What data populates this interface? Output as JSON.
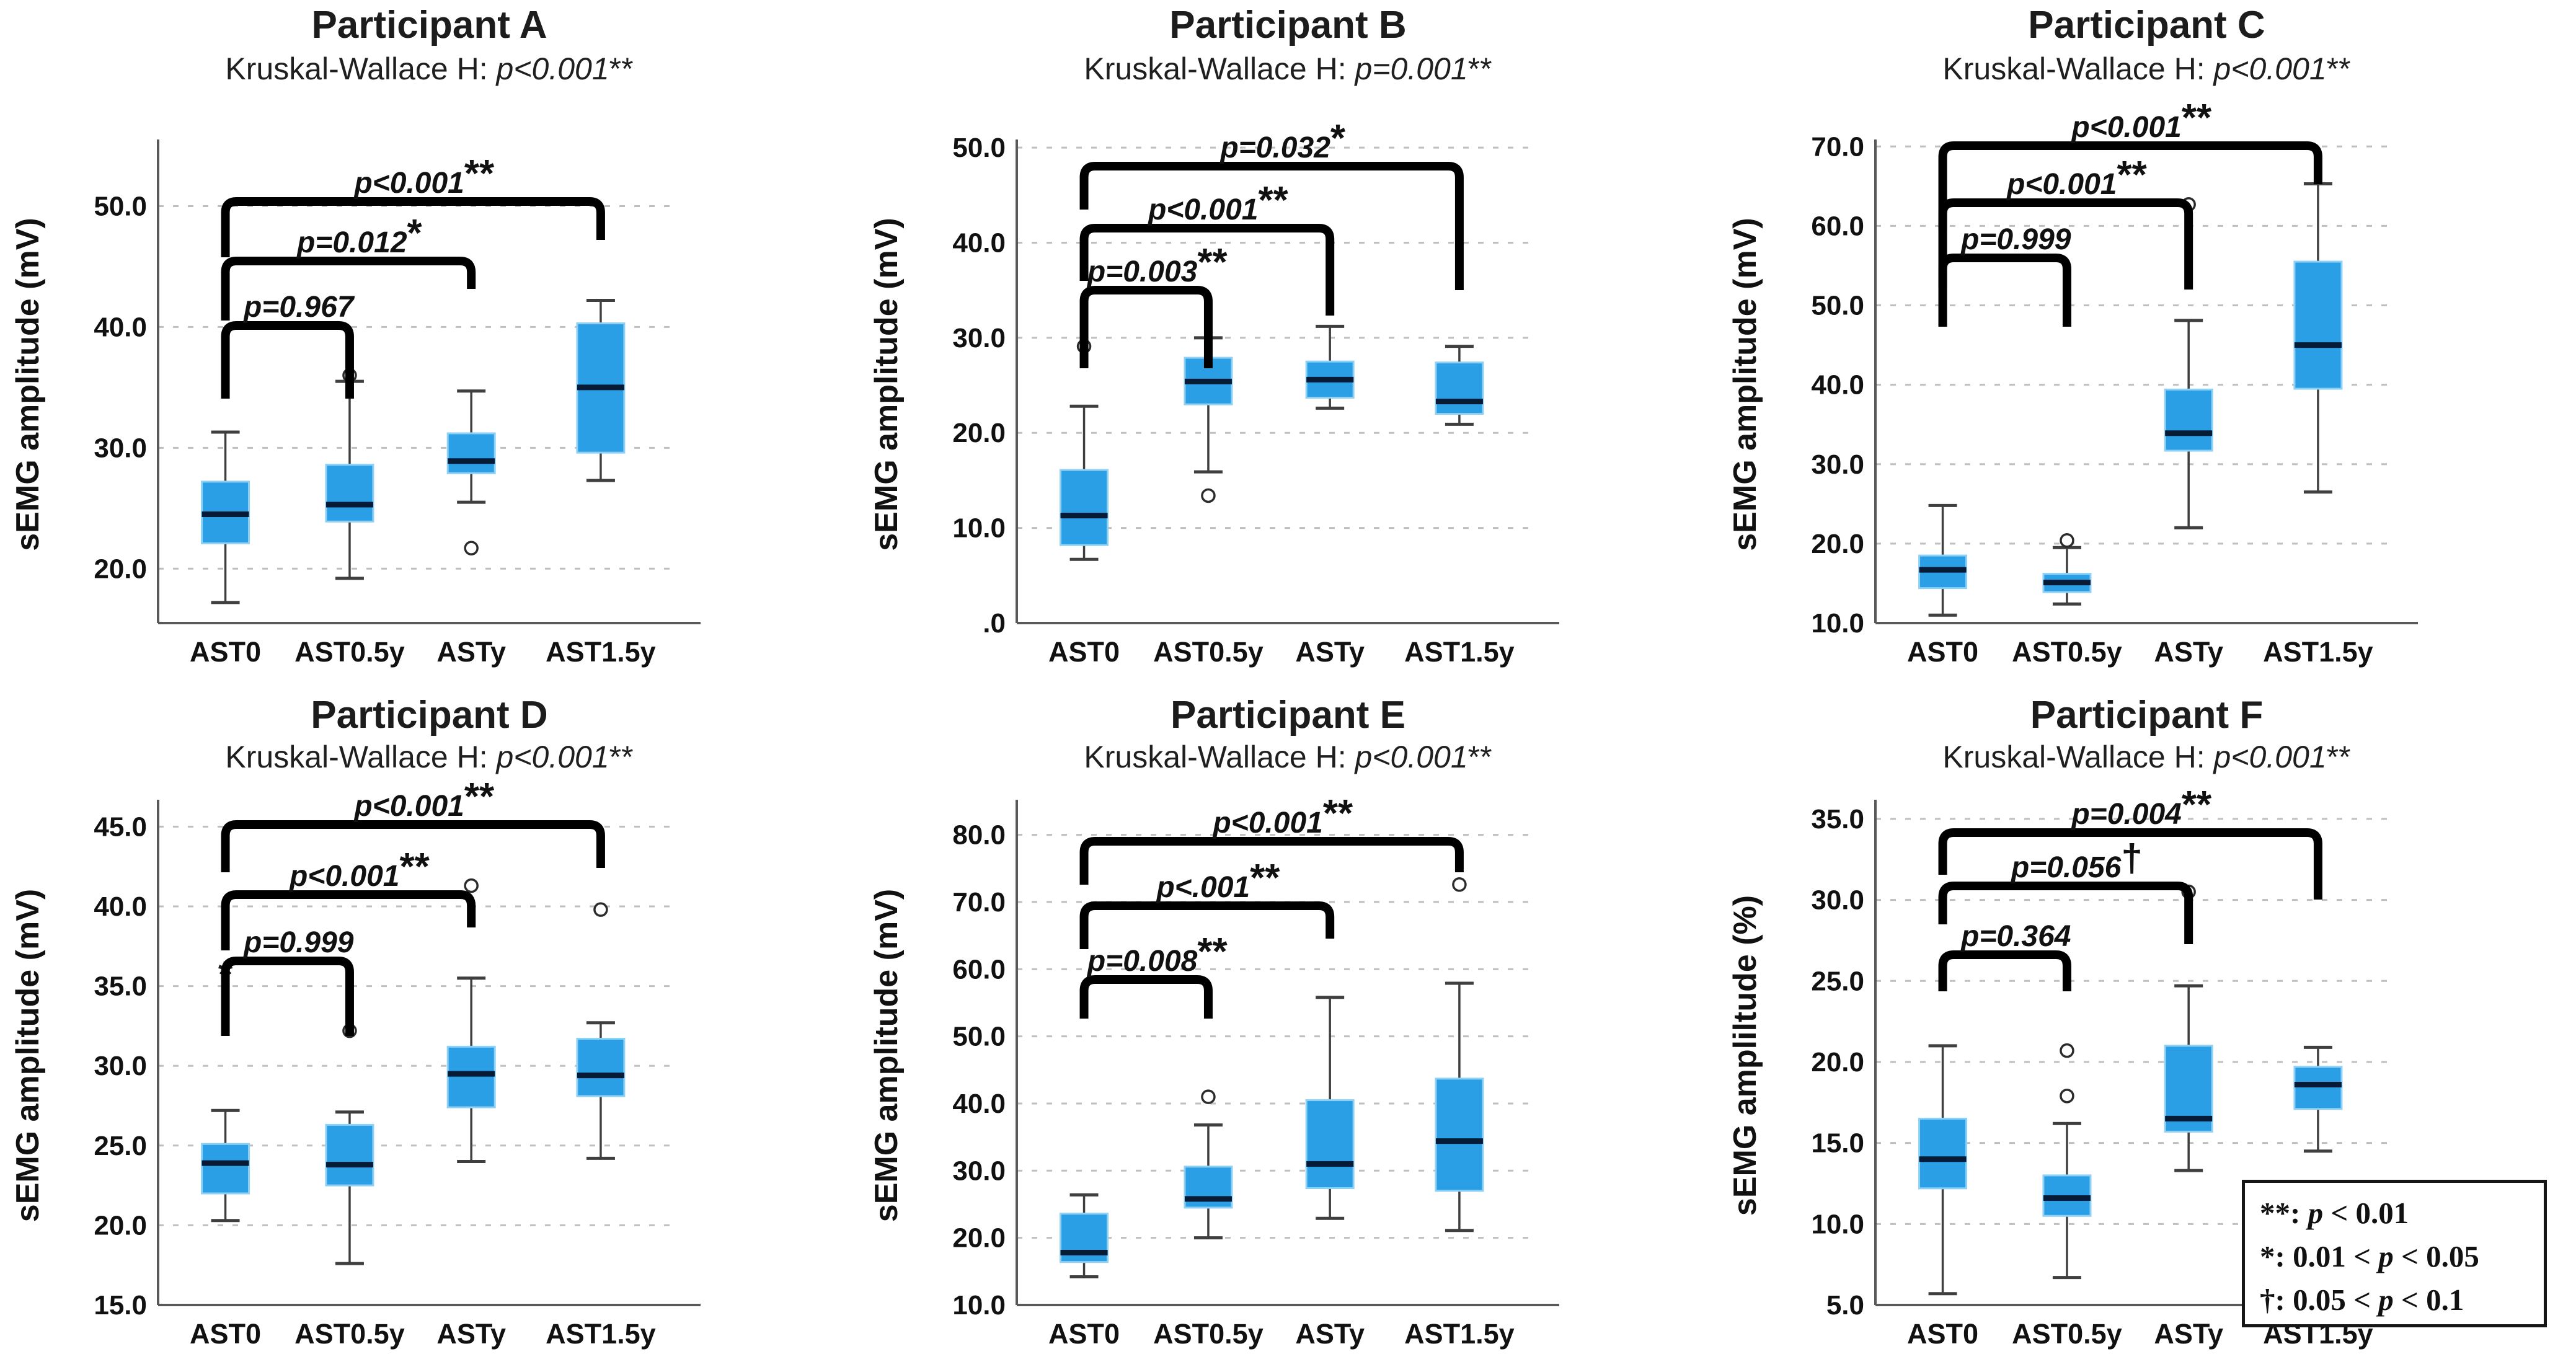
{
  "chart_data": [
    {
      "type": "boxplot",
      "title": "Participant A",
      "subtitle_prefix": "Kruskal-Wallace H: ",
      "subtitle_p": "p<0.001",
      "subtitle_marker": "**",
      "ylabel": "sEMG amplitude (mV)",
      "categories": [
        "AST0",
        "AST0.5y",
        "ASTy",
        "AST1.5y"
      ],
      "ylim": [
        15.5,
        55.0
      ],
      "ticks": [
        20,
        30,
        40,
        50
      ],
      "tick_labels": [
        "20.0",
        "30.0",
        "40.0",
        "50.0"
      ],
      "boxes": [
        {
          "lo": 17.2,
          "q1": 22.1,
          "med": 24.5,
          "q3": 27.2,
          "hi": 31.3,
          "outliers": [],
          "extremes": []
        },
        {
          "lo": 19.2,
          "q1": 23.9,
          "med": 25.3,
          "q3": 28.6,
          "hi": 35.5,
          "outliers": [
            36.0
          ],
          "extremes": []
        },
        {
          "lo": 25.5,
          "q1": 27.9,
          "med": 28.9,
          "q3": 31.2,
          "hi": 34.7,
          "outliers": [
            21.7
          ],
          "extremes": []
        },
        {
          "lo": 27.3,
          "q1": 29.6,
          "med": 35.0,
          "q3": 40.3,
          "hi": 42.2,
          "outliers": [],
          "extremes": []
        }
      ],
      "brackets": [
        {
          "from": 0,
          "to": 1,
          "label": "p=0.967",
          "marker": "",
          "bar": 525,
          "ldrop": 118,
          "rdrop": 118
        },
        {
          "from": 0,
          "to": 2,
          "label": "p=0.012",
          "marker": "*",
          "bar": 421,
          "ldrop": 96,
          "rdrop": 45
        },
        {
          "from": 0,
          "to": 3,
          "label": "p<0.001",
          "marker": "**",
          "bar": 325,
          "ldrop": 90,
          "rdrop": 62
        }
      ]
    },
    {
      "type": "boxplot",
      "title": "Participant B",
      "subtitle_prefix": "Kruskal-Wallace H: ",
      "subtitle_p": "p=0.001",
      "subtitle_marker": "**",
      "ylabel": "sEMG amplitude (mV)",
      "categories": [
        "AST0",
        "AST0.5y",
        "ASTy",
        "AST1.5y"
      ],
      "ylim": [
        0,
        50.2
      ],
      "ticks": [
        0,
        10,
        20,
        30,
        40,
        50
      ],
      "tick_labels": [
        ".0",
        "10.0",
        "20.0",
        "30.0",
        "40.0",
        "50.0"
      ],
      "boxes": [
        {
          "lo": 6.7,
          "q1": 8.2,
          "med": 11.3,
          "q3": 16.1,
          "hi": 22.8,
          "outliers": [
            29.1
          ],
          "extremes": []
        },
        {
          "lo": 15.9,
          "q1": 23.0,
          "med": 25.4,
          "q3": 27.9,
          "hi": 30.0,
          "outliers": [
            13.4
          ],
          "extremes": []
        },
        {
          "lo": 22.6,
          "q1": 23.7,
          "med": 25.6,
          "q3": 27.5,
          "hi": 31.2,
          "outliers": [],
          "extremes": []
        },
        {
          "lo": 20.9,
          "q1": 22.0,
          "med": 23.3,
          "q3": 27.4,
          "hi": 29.1,
          "outliers": [],
          "extremes": []
        }
      ],
      "brackets": [
        {
          "from": 0,
          "to": 1,
          "label": "p=0.003",
          "marker": "**",
          "bar": 468,
          "ldrop": 126,
          "rdrop": 126
        },
        {
          "from": 0,
          "to": 2,
          "label": "p<0.001",
          "marker": "**",
          "bar": 368,
          "ldrop": 85,
          "rdrop": 141
        },
        {
          "from": 0,
          "to": 3,
          "label": "p=0.032",
          "marker": "*",
          "bar": 268,
          "ldrop": 70,
          "rdrop": 200
        }
      ]
    },
    {
      "type": "boxplot",
      "title": "Participant C",
      "subtitle_prefix": "Kruskal-Wallace H: ",
      "subtitle_p": "p<0.001",
      "subtitle_marker": "**",
      "ylabel": "sEMG amplitude (mV)",
      "categories": [
        "AST0",
        "AST0.5y",
        "ASTy",
        "AST1.5y"
      ],
      "ylim": [
        10,
        70.1
      ],
      "ticks": [
        10,
        20,
        30,
        40,
        50,
        60,
        70
      ],
      "tick_labels": [
        "10.0",
        "20.0",
        "30.0",
        "40.0",
        "50.0",
        "60.0",
        "70.0"
      ],
      "boxes": [
        {
          "lo": 11.0,
          "q1": 14.4,
          "med": 16.7,
          "q3": 18.5,
          "hi": 24.8,
          "outliers": [],
          "extremes": []
        },
        {
          "lo": 12.4,
          "q1": 13.9,
          "med": 15.1,
          "q3": 16.2,
          "hi": 19.5,
          "outliers": [
            20.4
          ],
          "extremes": []
        },
        {
          "lo": 22.0,
          "q1": 31.7,
          "med": 33.9,
          "q3": 39.4,
          "hi": 48.1,
          "outliers": [
            62.7
          ],
          "extremes": []
        },
        {
          "lo": 26.5,
          "q1": 39.5,
          "med": 45.0,
          "q3": 55.5,
          "hi": 65.3,
          "outliers": [],
          "extremes": []
        }
      ],
      "brackets": [
        {
          "from": 0,
          "to": 1,
          "label": "p=0.999",
          "marker": "",
          "bar": 416,
          "ldrop": 111,
          "rdrop": 111
        },
        {
          "from": 0,
          "to": 2,
          "label": "p<0.001",
          "marker": "**",
          "bar": 327,
          "ldrop": 137,
          "rdrop": 140
        },
        {
          "from": 0,
          "to": 3,
          "label": "p<0.001",
          "marker": "**",
          "bar": 235,
          "ldrop": 136,
          "rdrop": 62
        }
      ]
    },
    {
      "type": "boxplot",
      "title": "Participant D",
      "subtitle_prefix": "Kruskal-Wallace H: ",
      "subtitle_p": "p<0.001",
      "subtitle_marker": "**",
      "ylabel": "sEMG amplitude (mV)",
      "categories": [
        "AST0",
        "AST0.5y",
        "ASTy",
        "AST1.5y"
      ],
      "ylim": [
        15,
        46.3
      ],
      "ticks": [
        15,
        20,
        25,
        30,
        35,
        40,
        45
      ],
      "tick_labels": [
        "15.0",
        "20.0",
        "25.0",
        "30.0",
        "35.0",
        "40.0",
        "45.0"
      ],
      "boxes": [
        {
          "lo": 20.3,
          "q1": 22.0,
          "med": 23.9,
          "q3": 25.1,
          "hi": 27.2,
          "outliers": [],
          "extremes": [
            35.7
          ]
        },
        {
          "lo": 17.6,
          "q1": 22.5,
          "med": 23.8,
          "q3": 26.3,
          "hi": 27.1,
          "outliers": [
            32.2
          ],
          "extremes": []
        },
        {
          "lo": 24.0,
          "q1": 27.4,
          "med": 29.5,
          "q3": 31.2,
          "hi": 35.5,
          "outliers": [
            41.3
          ],
          "extremes": []
        },
        {
          "lo": 24.2,
          "q1": 28.1,
          "med": 29.4,
          "q3": 31.7,
          "hi": 32.7,
          "outliers": [
            39.8
          ],
          "extremes": []
        }
      ],
      "brackets": [
        {
          "from": 0,
          "to": 1,
          "label": "p=0.999",
          "marker": "",
          "bar": 450,
          "ldrop": 121,
          "rdrop": 121
        },
        {
          "from": 0,
          "to": 2,
          "label": "p<0.001",
          "marker": "**",
          "bar": 343,
          "ldrop": 90,
          "rdrop": 53
        },
        {
          "from": 0,
          "to": 3,
          "label": "p<0.001",
          "marker": "**",
          "bar": 230,
          "ldrop": 77,
          "rdrop": 70
        }
      ]
    },
    {
      "type": "boxplot",
      "title": "Participant E",
      "subtitle_prefix": "Kruskal-Wallace H: ",
      "subtitle_p": "p<0.001",
      "subtitle_marker": "**",
      "ylabel": "sEMG amplitude (mV)",
      "categories": [
        "AST0",
        "AST0.5y",
        "ASTy",
        "AST1.5y"
      ],
      "ylim": [
        10,
        84.3
      ],
      "ticks": [
        10,
        20,
        30,
        40,
        50,
        60,
        70,
        80
      ],
      "tick_labels": [
        "10.0",
        "20.0",
        "30.0",
        "40.0",
        "50.0",
        "60.0",
        "70.0",
        "80.0"
      ],
      "boxes": [
        {
          "lo": 14.2,
          "q1": 16.4,
          "med": 17.8,
          "q3": 23.6,
          "hi": 26.4,
          "outliers": [],
          "extremes": []
        },
        {
          "lo": 20.0,
          "q1": 24.5,
          "med": 25.8,
          "q3": 30.6,
          "hi": 36.8,
          "outliers": [
            41.0
          ],
          "extremes": []
        },
        {
          "lo": 22.9,
          "q1": 27.4,
          "med": 31.0,
          "q3": 40.5,
          "hi": 55.8,
          "outliers": [],
          "extremes": []
        },
        {
          "lo": 21.1,
          "q1": 27.0,
          "med": 34.4,
          "q3": 43.7,
          "hi": 57.9,
          "outliers": [
            72.6
          ],
          "extremes": []
        }
      ],
      "brackets": [
        {
          "from": 0,
          "to": 1,
          "label": "p=0.008",
          "marker": "**",
          "bar": 480,
          "ldrop": 63,
          "rdrop": 63
        },
        {
          "from": 0,
          "to": 2,
          "label": "p<.001",
          "marker": "**",
          "bar": 361,
          "ldrop": 70,
          "rdrop": 53
        },
        {
          "from": 0,
          "to": 3,
          "label": "p<0.001",
          "marker": "**",
          "bar": 257,
          "ldrop": 70,
          "rdrop": 50
        }
      ]
    },
    {
      "type": "boxplot",
      "title": "Participant F",
      "subtitle_prefix": "Kruskal-Wallace H: ",
      "subtitle_p": "p<0.001",
      "subtitle_marker": "**",
      "ylabel": "sEMG ampliltude (%)",
      "categories": [
        "AST0",
        "AST0.5y",
        "ASTy",
        "AST1.5y"
      ],
      "ylim": [
        5,
        35.8
      ],
      "ticks": [
        5,
        10,
        15,
        20,
        25,
        30,
        35
      ],
      "tick_labels": [
        "5.0",
        "10.0",
        "15.0",
        "20.0",
        "25.0",
        "30.0",
        "35.0"
      ],
      "boxes": [
        {
          "lo": 5.7,
          "q1": 12.2,
          "med": 14.0,
          "q3": 16.5,
          "hi": 21.0,
          "outliers": [],
          "extremes": []
        },
        {
          "lo": 6.7,
          "q1": 10.5,
          "med": 11.6,
          "q3": 13.0,
          "hi": 16.2,
          "outliers": [
            17.9,
            20.7
          ],
          "extremes": []
        },
        {
          "lo": 13.3,
          "q1": 15.7,
          "med": 16.5,
          "q3": 21.0,
          "hi": 24.7,
          "outliers": [
            30.5
          ],
          "extremes": []
        },
        {
          "lo": 14.5,
          "q1": 17.1,
          "med": 18.6,
          "q3": 19.7,
          "hi": 20.9,
          "outliers": [],
          "extremes": []
        }
      ],
      "brackets": [
        {
          "from": 0,
          "to": 1,
          "label": "p=0.364",
          "marker": "",
          "bar": 440,
          "ldrop": 59,
          "rdrop": 59
        },
        {
          "from": 0,
          "to": 2,
          "label": "p=0.056",
          "marker": "†",
          "bar": 329,
          "ldrop": 62,
          "rdrop": 94
        },
        {
          "from": 0,
          "to": 3,
          "label": "p=0.004",
          "marker": "**",
          "bar": 243,
          "ldrop": 68,
          "rdrop": 108
        }
      ]
    }
  ],
  "legend": {
    "lines": [
      {
        "marker": "**",
        "before": "",
        "after": " < 0.01"
      },
      {
        "marker": "*",
        "before": "0.01 < ",
        "after": " < 0.05"
      },
      {
        "marker": "†",
        "before": "0.05 < ",
        "after": " < 0.1"
      }
    ],
    "p_symbol": "p"
  },
  "colors": {
    "box_fill": "#2B9FE5",
    "box_edge": "#8FD0F5",
    "median": "#081B36",
    "whisker": "#3f3f3f",
    "bracket": "#000000",
    "gridline": "#bfbfbf",
    "axis": "#595959",
    "text": "#111111"
  }
}
